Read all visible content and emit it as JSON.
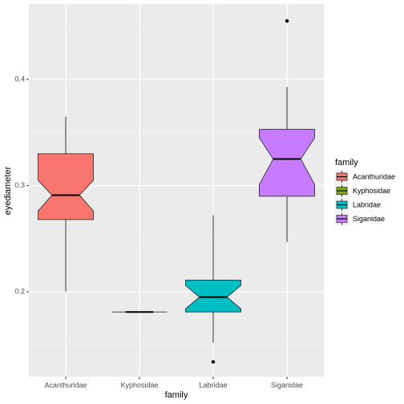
{
  "chart_data": {
    "type": "boxplot",
    "x_label": "family",
    "y_label": "eyediameter",
    "legend_title": "family",
    "categories": [
      "Acanthuridae",
      "Kyphosidae",
      "Labridae",
      "Siganidae"
    ],
    "colors": [
      "#F8766D",
      "#7CAE00",
      "#00BFC4",
      "#C77CFF"
    ],
    "boxes": [
      {
        "whisker_low": 0.2,
        "q1": 0.268,
        "notch_low": 0.276,
        "median": 0.291,
        "notch_high": 0.305,
        "q3": 0.33,
        "whisker_high": 0.365,
        "outliers": []
      },
      {
        "whisker_low": 0.181,
        "q1": 0.181,
        "notch_low": 0.181,
        "median": 0.181,
        "notch_high": 0.181,
        "q3": 0.181,
        "whisker_high": 0.181,
        "outliers": []
      },
      {
        "whisker_low": 0.152,
        "q1": 0.181,
        "notch_low": 0.184,
        "median": 0.195,
        "notch_high": 0.206,
        "q3": 0.211,
        "whisker_high": 0.272,
        "outliers": [
          0.134
        ]
      },
      {
        "whisker_low": 0.247,
        "q1": 0.29,
        "notch_low": 0.301,
        "median": 0.325,
        "notch_high": 0.345,
        "q3": 0.353,
        "whisker_high": 0.393,
        "outliers": [
          0.455
        ]
      }
    ],
    "ylim": [
      0.12,
      0.471
    ],
    "yticks": [
      0.2,
      0.3,
      0.4
    ],
    "minor_yticks": [
      0.15,
      0.25,
      0.35,
      0.45
    ],
    "grid": true,
    "legend_position": "right"
  }
}
